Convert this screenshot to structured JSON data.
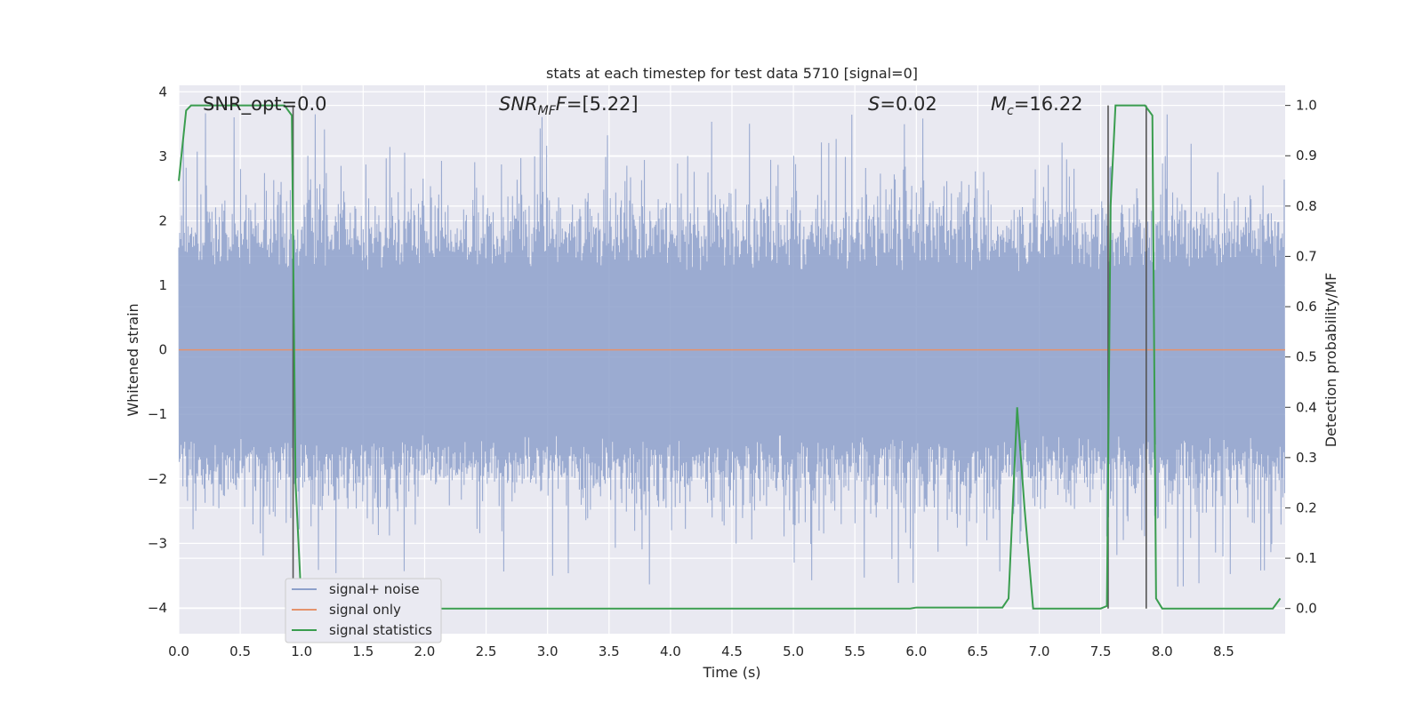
{
  "chart_data": {
    "type": "line",
    "title": "stats at each timestep for test data 5710 [signal=0]",
    "xlabel": "Time (s)",
    "ylabel_left": "Whitened strain",
    "ylabel_right": "Detection probability/MF",
    "xlim": [
      0.0,
      9.0
    ],
    "ylim_left": [
      -4.4,
      4.1
    ],
    "ylim_right": [
      -0.05,
      1.04
    ],
    "grid": true,
    "legend_position": "lower-left",
    "x_ticks": [
      "0.0",
      "0.5",
      "1.0",
      "1.5",
      "2.0",
      "2.5",
      "3.0",
      "3.5",
      "4.0",
      "4.5",
      "5.0",
      "5.5",
      "6.0",
      "6.5",
      "7.0",
      "7.5",
      "8.0",
      "8.5"
    ],
    "y_ticks_left": [
      "4",
      "3",
      "2",
      "1",
      "0",
      "−1",
      "−2",
      "−3",
      "−4"
    ],
    "y_ticks_right": [
      "1.0",
      "0.9",
      "0.8",
      "0.7",
      "0.6",
      "0.5",
      "0.4",
      "0.3",
      "0.2",
      "0.1",
      "0.0"
    ],
    "annotations": {
      "snr_opt": "SNR_opt=0.0",
      "snr_mf_prefix": "SNR",
      "snr_mf_sub": "MF",
      "snr_mf_suffix": "=[5.22]",
      "s_var": "S",
      "s_value": "=0.02",
      "mc_var": "M",
      "mc_sub": "c",
      "mc_value": "=16.22"
    },
    "series": [
      {
        "name": "signal+ noise",
        "color": "#8da0cb",
        "axis": "left",
        "description_values": "noise-like whitened strain roughly within [-4, 3.8]"
      },
      {
        "name": "signal only",
        "color": "#e5936d",
        "axis": "left",
        "x": [
          0.0,
          9.0
        ],
        "y": [
          0.0,
          0.0
        ]
      },
      {
        "name": "signal statistics",
        "color": "#3a9d4f",
        "axis": "right",
        "x": [
          0.0,
          0.06,
          0.1,
          0.5,
          0.8,
          0.86,
          0.92,
          0.95,
          1.0,
          5.95,
          6.0,
          6.7,
          6.75,
          6.82,
          6.88,
          6.95,
          7.5,
          7.55,
          7.58,
          7.62,
          7.8,
          7.86,
          7.92,
          7.95,
          8.0,
          8.9,
          8.96
        ],
        "y": [
          0.85,
          0.99,
          1.0,
          1.0,
          1.0,
          1.0,
          0.98,
          0.25,
          0.0,
          0.0,
          0.002,
          0.002,
          0.02,
          0.4,
          0.2,
          0.0,
          0.0,
          0.005,
          0.8,
          1.0,
          1.0,
          1.0,
          0.98,
          0.02,
          0.0,
          0.0,
          0.02
        ]
      }
    ],
    "vertical_markers": [
      {
        "x": 0.93,
        "color": "#555555"
      },
      {
        "x": 7.56,
        "color": "#555555"
      },
      {
        "x": 7.87,
        "color": "#555555"
      }
    ],
    "legend": [
      "signal+ noise",
      "signal only",
      "signal statistics"
    ],
    "colors": {
      "plot_bg": "#e9e9f1",
      "grid": "#ffffff",
      "noise": "#8da0cb",
      "signal": "#e5936d",
      "stats": "#3a9d4f",
      "marker": "#555555"
    }
  }
}
